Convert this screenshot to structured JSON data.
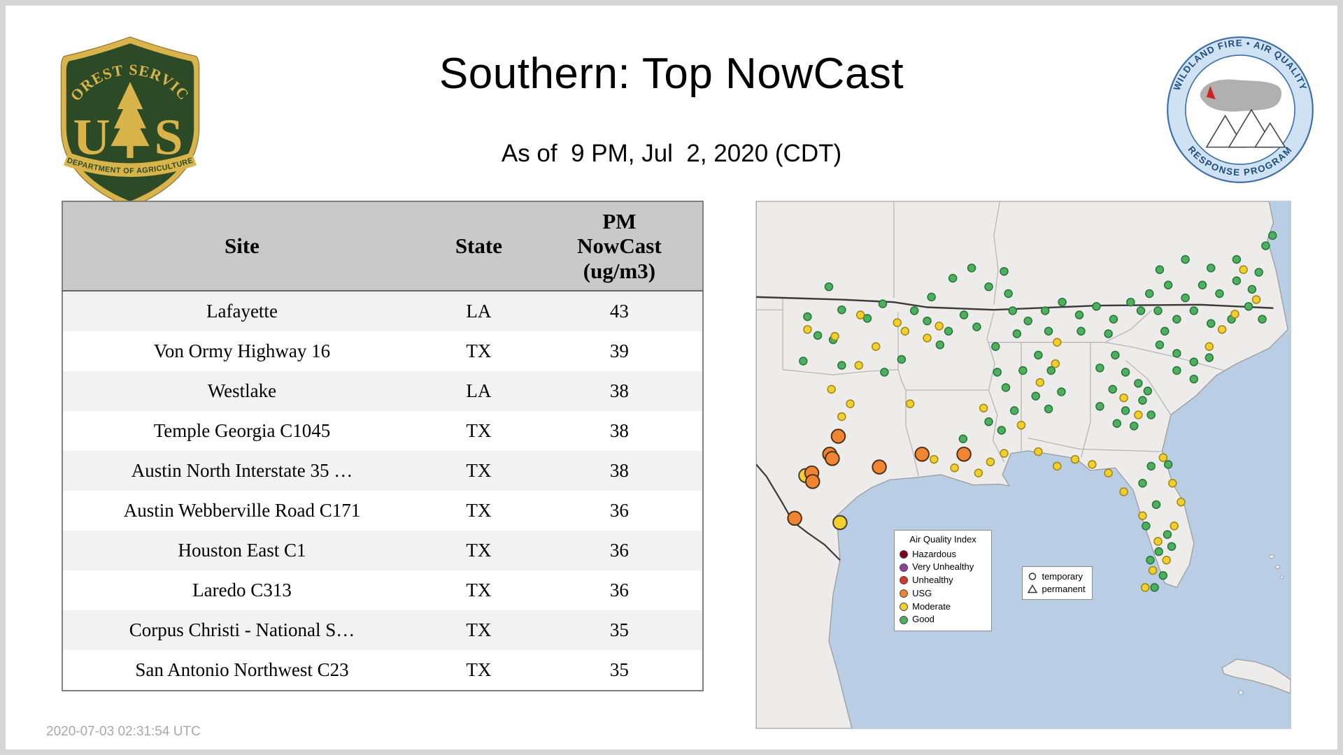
{
  "header": {
    "title": "Southern: Top NowCast",
    "subtitle": "As of  9 PM, Jul  2, 2020 (CDT)"
  },
  "logos": {
    "forest_service": {
      "top_text": "FOREST SERVICE",
      "letter_u": "U",
      "letter_s": "S",
      "bottom_text": "DEPARTMENT OF AGRICULTURE",
      "shield_green": "#2d4a27",
      "shield_gold": "#d9b44a"
    },
    "wfaqrp": {
      "top_text": "WILDLAND FIRE • AIR QUALITY",
      "bottom_text": "RESPONSE PROGRAM",
      "ring_blue": "#3c6ea5",
      "band_blue": "#cfe2f3"
    }
  },
  "table": {
    "columns": [
      "Site",
      "State",
      "PM\nNowCast\n(ug/m3)"
    ],
    "rows": [
      [
        "Lafayette",
        "LA",
        "43"
      ],
      [
        "Von Ormy Highway 16",
        "TX",
        "39"
      ],
      [
        "Westlake",
        "LA",
        "38"
      ],
      [
        "Temple Georgia C1045",
        "TX",
        "38"
      ],
      [
        "Austin North Interstate 35 …",
        "TX",
        "38"
      ],
      [
        "Austin Webberville Road C171",
        "TX",
        "36"
      ],
      [
        "Houston East C1",
        "TX",
        "36"
      ],
      [
        "Laredo C313",
        "TX",
        "36"
      ],
      [
        "Corpus Christi - National S…",
        "TX",
        "35"
      ],
      [
        "San Antonio Northwest C23",
        "TX",
        "35"
      ]
    ]
  },
  "footer": {
    "timestamp": "2020-07-03 02:31:54 UTC"
  },
  "map": {
    "colors": {
      "good": "#4cb05d",
      "moderate": "#f3ce2f",
      "usg": "#ef8532",
      "water": "#b9cee4",
      "land": "#edecea"
    },
    "legend": {
      "title": "Air Quality Index",
      "items": [
        {
          "label": "Hazardous",
          "color": "#7e0023"
        },
        {
          "label": "Very Unhealthy",
          "color": "#8f3f97"
        },
        {
          "label": "Unhealthy",
          "color": "#d7342e"
        },
        {
          "label": "USG",
          "color": "#ef8532"
        },
        {
          "label": "Moderate",
          "color": "#f3ce2f"
        },
        {
          "label": "Good",
          "color": "#4cb05d"
        }
      ]
    },
    "marker_legend": {
      "items": [
        {
          "label": "temporary",
          "shape": "circle"
        },
        {
          "label": "permanent",
          "shape": "triangle"
        }
      ]
    },
    "points": {
      "good": [
        [
          100,
          127
        ],
        [
          130,
          137
        ],
        [
          72,
          157
        ],
        [
          90,
          162
        ],
        [
          55,
          187
        ],
        [
          100,
          192
        ],
        [
          148,
          120
        ],
        [
          60,
          135
        ],
        [
          85,
          100
        ],
        [
          185,
          128
        ],
        [
          205,
          112
        ],
        [
          230,
          90
        ],
        [
          252,
          78
        ],
        [
          272,
          100
        ],
        [
          290,
          82
        ],
        [
          200,
          140
        ],
        [
          225,
          152
        ],
        [
          243,
          133
        ],
        [
          258,
          147
        ],
        [
          215,
          168
        ],
        [
          300,
          128
        ],
        [
          318,
          140
        ],
        [
          338,
          128
        ],
        [
          358,
          118
        ],
        [
          378,
          133
        ],
        [
          398,
          123
        ],
        [
          418,
          138
        ],
        [
          438,
          118
        ],
        [
          305,
          155
        ],
        [
          342,
          152
        ],
        [
          380,
          152
        ],
        [
          412,
          155
        ],
        [
          450,
          128
        ],
        [
          295,
          108
        ],
        [
          460,
          108
        ],
        [
          482,
          98
        ],
        [
          502,
          113
        ],
        [
          522,
          98
        ],
        [
          542,
          108
        ],
        [
          562,
          93
        ],
        [
          580,
          103
        ],
        [
          470,
          128
        ],
        [
          492,
          138
        ],
        [
          512,
          128
        ],
        [
          532,
          143
        ],
        [
          556,
          138
        ],
        [
          576,
          123
        ],
        [
          592,
          138
        ],
        [
          472,
          80
        ],
        [
          502,
          68
        ],
        [
          532,
          78
        ],
        [
          562,
          68
        ],
        [
          588,
          83
        ],
        [
          596,
          52
        ],
        [
          604,
          40
        ],
        [
          472,
          168
        ],
        [
          492,
          178
        ],
        [
          512,
          188
        ],
        [
          530,
          183
        ],
        [
          492,
          198
        ],
        [
          512,
          208
        ],
        [
          478,
          152
        ],
        [
          420,
          180
        ],
        [
          402,
          195
        ],
        [
          432,
          200
        ],
        [
          447,
          213
        ],
        [
          417,
          220
        ],
        [
          402,
          240
        ],
        [
          432,
          245
        ],
        [
          452,
          233
        ],
        [
          462,
          250
        ],
        [
          422,
          260
        ],
        [
          442,
          263
        ],
        [
          458,
          222
        ],
        [
          330,
          180
        ],
        [
          345,
          198
        ],
        [
          327,
          228
        ],
        [
          342,
          243
        ],
        [
          357,
          223
        ],
        [
          312,
          198
        ],
        [
          282,
          200
        ],
        [
          292,
          218
        ],
        [
          272,
          258
        ],
        [
          287,
          268
        ],
        [
          280,
          170
        ],
        [
          302,
          245
        ],
        [
          462,
          310
        ],
        [
          482,
          308
        ],
        [
          452,
          330
        ],
        [
          468,
          355
        ],
        [
          456,
          380
        ],
        [
          481,
          390
        ],
        [
          471,
          410
        ],
        [
          461,
          420
        ],
        [
          486,
          404
        ],
        [
          476,
          438
        ],
        [
          466,
          452
        ],
        [
          242,
          278
        ],
        [
          150,
          200
        ],
        [
          170,
          185
        ]
      ],
      "moderate": [
        [
          165,
          142
        ],
        [
          174,
          152
        ],
        [
          120,
          192
        ],
        [
          110,
          237
        ],
        [
          100,
          252
        ],
        [
          180,
          237
        ],
        [
          140,
          170
        ],
        [
          88,
          220
        ],
        [
          208,
          302
        ],
        [
          232,
          312
        ],
        [
          260,
          318
        ],
        [
          274,
          305
        ],
        [
          266,
          242
        ],
        [
          290,
          295
        ],
        [
          310,
          262
        ],
        [
          330,
          293
        ],
        [
          350,
          190
        ],
        [
          332,
          212
        ],
        [
          352,
          165
        ],
        [
          352,
          310
        ],
        [
          373,
          302
        ],
        [
          393,
          308
        ],
        [
          412,
          318
        ],
        [
          430,
          340
        ],
        [
          452,
          368
        ],
        [
          470,
          398
        ],
        [
          480,
          420
        ],
        [
          464,
          432
        ],
        [
          455,
          452
        ],
        [
          489,
          380
        ],
        [
          497,
          352
        ],
        [
          487,
          330
        ],
        [
          476,
          300
        ],
        [
          430,
          230
        ],
        [
          447,
          250
        ],
        [
          545,
          150
        ],
        [
          560,
          132
        ],
        [
          530,
          170
        ],
        [
          585,
          115
        ],
        [
          200,
          160
        ],
        [
          60,
          150
        ],
        [
          92,
          158
        ],
        [
          122,
          133
        ],
        [
          214,
          146
        ],
        [
          570,
          80
        ]
      ],
      "usg_large": [
        [
          96,
          275
        ],
        [
          86,
          296
        ],
        [
          89,
          301
        ],
        [
          65,
          318
        ],
        [
          66,
          328
        ],
        [
          144,
          311
        ],
        [
          194,
          296
        ],
        [
          243,
          296
        ],
        [
          45,
          371
        ]
      ],
      "moderate_large": [
        [
          98,
          376
        ],
        [
          58,
          321
        ]
      ]
    }
  }
}
